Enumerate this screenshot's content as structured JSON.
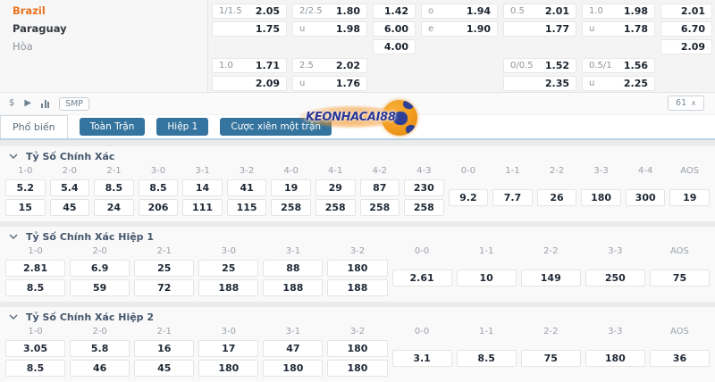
{
  "colors": {
    "accent_blue": "#35749e",
    "brazil_orange": "#e8721c",
    "tab_line_blue": "#b9d3e6",
    "logo_blue": "#2c3795",
    "logo_orange": "#f39221"
  },
  "match": {
    "teams": [
      {
        "name": "Brazil"
      },
      {
        "name": "Paraguay"
      },
      {
        "name": "Hòa"
      }
    ],
    "odds_rows": [
      [
        {
          "label": "1/1.5",
          "value": "2.05"
        },
        {
          "label": "2/2.5",
          "value": "1.80"
        },
        {
          "label": "",
          "value": "1.42"
        },
        {
          "label": "o",
          "value": "1.94"
        },
        {
          "label": "0.5",
          "value": "2.01"
        },
        {
          "label": "1.0",
          "value": "1.98"
        },
        {
          "label": "",
          "value": "2.01"
        }
      ],
      [
        {
          "label": "",
          "value": "1.75"
        },
        {
          "label": "u",
          "value": "1.98"
        },
        {
          "label": "",
          "value": "6.00"
        },
        {
          "label": "e",
          "value": "1.90"
        },
        {
          "label": "",
          "value": "1.77"
        },
        {
          "label": "u",
          "value": "1.78"
        },
        {
          "label": "",
          "value": "6.70"
        }
      ],
      [
        null,
        null,
        {
          "label": "",
          "value": "4.00"
        },
        null,
        null,
        null,
        {
          "label": "",
          "value": "2.09"
        }
      ],
      [
        {
          "label": "1.0",
          "value": "1.71"
        },
        {
          "label": "2.5",
          "value": "2.02"
        },
        null,
        null,
        {
          "label": "0/0.5",
          "value": "1.52"
        },
        {
          "label": "0.5/1",
          "value": "1.56"
        },
        null
      ],
      [
        {
          "label": "",
          "value": "2.09"
        },
        {
          "label": "u",
          "value": "1.76"
        },
        null,
        null,
        {
          "label": "",
          "value": "2.35"
        },
        {
          "label": "u",
          "value": "2.25"
        },
        null
      ]
    ]
  },
  "toolbar": {
    "dollar_icon": "$",
    "play_icon": "▶",
    "stats_icon": "bar-chart",
    "smp_label": "SMP",
    "collapse_count": "61",
    "collapse_icon": "∧"
  },
  "tabs": {
    "active": "Phổ biến",
    "buttons": [
      "Toàn Trận",
      "Hiệp 1",
      "Cược xiên một trận"
    ]
  },
  "watermark": {
    "text": "KEONHACAI88"
  },
  "sections": [
    {
      "title": "Tỷ Số Chính Xác",
      "score_headers": [
        "1-0",
        "2-0",
        "2-1",
        "3-0",
        "3-1",
        "3-2",
        "4-0",
        "4-1",
        "4-2",
        "4-3"
      ],
      "draw_headers": [
        "0-0",
        "1-1",
        "2-2",
        "3-3",
        "4-4",
        "AOS"
      ],
      "row1": [
        "5.2",
        "5.4",
        "8.5",
        "8.5",
        "14",
        "41",
        "19",
        "29",
        "87",
        "230"
      ],
      "row2": [
        "15",
        "45",
        "24",
        "206",
        "111",
        "115",
        "258",
        "258",
        "258",
        "258"
      ],
      "draw_row": [
        "9.2",
        "7.7",
        "26",
        "180",
        "300",
        "19"
      ]
    },
    {
      "title": "Tỷ Số Chính Xác Hiệp 1",
      "score_headers": [
        "1-0",
        "2-0",
        "2-1",
        "3-0",
        "3-1",
        "3-2"
      ],
      "draw_headers": [
        "0-0",
        "1-1",
        "2-2",
        "3-3",
        "AOS"
      ],
      "row1": [
        "2.81",
        "6.9",
        "25",
        "25",
        "88",
        "180"
      ],
      "row2": [
        "8.5",
        "59",
        "72",
        "188",
        "188",
        "188"
      ],
      "draw_row": [
        "2.61",
        "10",
        "149",
        "250",
        "75"
      ]
    },
    {
      "title": "Tỷ Số Chính Xác Hiệp 2",
      "score_headers": [
        "1-0",
        "2-0",
        "2-1",
        "3-0",
        "3-1",
        "3-2"
      ],
      "draw_headers": [
        "0-0",
        "1-1",
        "2-2",
        "3-3",
        "AOS"
      ],
      "row1": [
        "3.05",
        "5.8",
        "16",
        "17",
        "47",
        "180"
      ],
      "row2": [
        "8.5",
        "46",
        "45",
        "180",
        "180",
        "180"
      ],
      "draw_row": [
        "3.1",
        "8.5",
        "75",
        "180",
        "36"
      ]
    }
  ]
}
